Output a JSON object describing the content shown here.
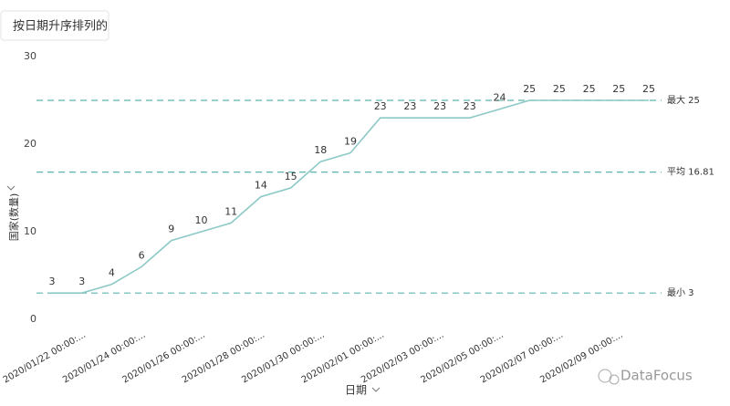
{
  "chart_data": {
    "type": "line",
    "title": "按日期升序排列的",
    "x_label": "日期",
    "y_label": "国家(数量)",
    "categories": [
      "2020/01/22 00:00:...",
      null,
      "2020/01/24 00:00:...",
      null,
      "2020/01/26 00:00:...",
      null,
      "2020/01/28 00:00:...",
      null,
      "2020/01/30 00:00:...",
      null,
      "2020/02/01 00:00:...",
      null,
      "2020/02/03 00:00:...",
      null,
      "2020/02/05 00:00:...",
      null,
      "2020/02/07 00:00:...",
      null,
      "2020/02/09 00:00:...",
      null,
      null
    ],
    "values": [
      3,
      3,
      4,
      6,
      9,
      10,
      11,
      14,
      15,
      18,
      19,
      23,
      23,
      23,
      23,
      24,
      25,
      25,
      25,
      25,
      25
    ],
    "color": "#8cc9c6",
    "ylim": [
      0,
      30
    ],
    "yticks": [
      0,
      10,
      20,
      30
    ],
    "reference_lines": [
      {
        "label": "最大 25",
        "value": 25
      },
      {
        "label": "平均 16.81",
        "value": 16.81
      },
      {
        "label": "最小 3",
        "value": 3
      }
    ],
    "reference_color": "#5db5ad",
    "watermark": "DataFocus"
  }
}
